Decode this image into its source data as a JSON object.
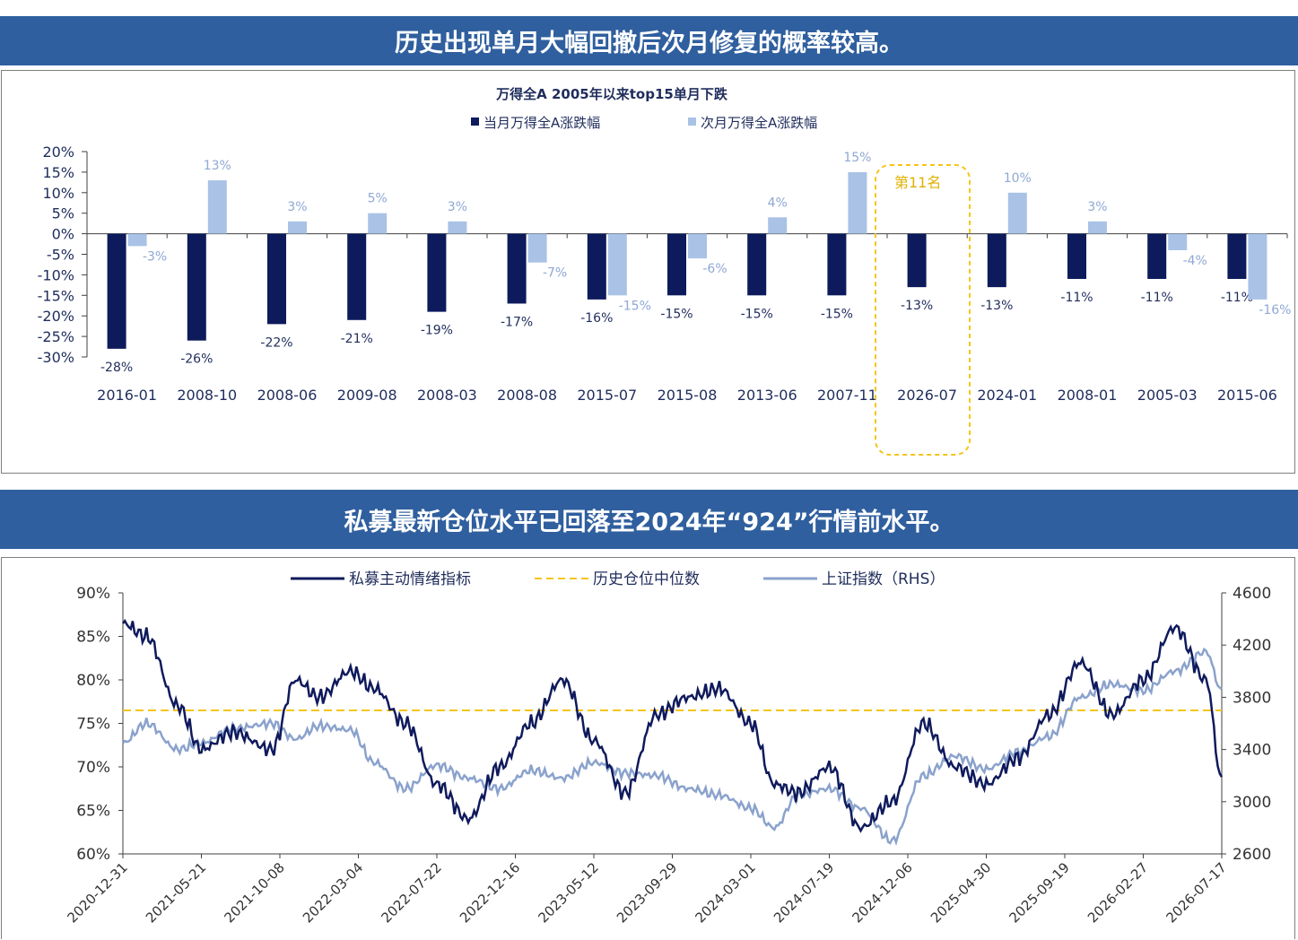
{
  "section1": {
    "banner": "历史出现单月大幅回撤后次月修复的概率较高。"
  },
  "section2": {
    "banner": "私募最新仓位水平已回落至2024年“924”行情前水平。"
  },
  "colors": {
    "banner_bg": "#2f5f9e",
    "bar_current": "#0d1a5c",
    "bar_next": "#a9c2e6",
    "highlight": "#f5c518",
    "line_sentiment": "#0f1a5c",
    "line_median": "#f5c518",
    "line_index": "#8aa2cc"
  },
  "chart_data": [
    {
      "type": "bar",
      "title": "万得全A 2005年以来top15单月下跌",
      "categories": [
        "2016-01",
        "2008-10",
        "2008-06",
        "2009-08",
        "2008-03",
        "2008-08",
        "2015-07",
        "2015-08",
        "2013-06",
        "2007-11",
        "2026-07",
        "2024-01",
        "2008-01",
        "2005-03",
        "2015-06"
      ],
      "series": [
        {
          "name": "当月万得全A涨跌幅",
          "values": [
            -28,
            -26,
            -22,
            -21,
            -19,
            -17,
            -16,
            -15,
            -15,
            -15,
            -13,
            -13,
            -11,
            -11,
            -11
          ]
        },
        {
          "name": "次月万得全A涨跌幅",
          "values": [
            -3,
            13,
            3,
            5,
            3,
            -7,
            -15,
            -6,
            4,
            15,
            null,
            10,
            3,
            -4,
            -16
          ]
        }
      ],
      "value_labels_current": [
        "-28%",
        "-26%",
        "-22%",
        "-21%",
        "-19%",
        "-17%",
        "-16%",
        "-15%",
        "-15%",
        "-15%",
        "-13%",
        "-13%",
        "-11%",
        "-11%",
        "-11%"
      ],
      "value_labels_next": [
        "-3%",
        "13%",
        "3%",
        "5%",
        "3%",
        "-7%",
        "-15%",
        "-6%",
        "4%",
        "15%",
        "",
        "10%",
        "3%",
        "-4%",
        "-16%"
      ],
      "ylim": [
        -30,
        20
      ],
      "yticks": [
        "20%",
        "15%",
        "10%",
        "5%",
        "0%",
        "-5%",
        "-10%",
        "-15%",
        "-20%",
        "-25%",
        "-30%"
      ],
      "annotation": {
        "category": "2026-07",
        "text": "第11名"
      },
      "legend_position": "top"
    },
    {
      "type": "line",
      "legend": [
        "私募主动情绪指标",
        "历史仓位中位数",
        "上证指数（RHS）"
      ],
      "x_ticks": [
        "2020-12-31",
        "2021-05-21",
        "2021-10-08",
        "2022-03-04",
        "2022-07-22",
        "2022-12-16",
        "2023-05-12",
        "2023-09-29",
        "2024-03-01",
        "2024-07-19",
        "2024-12-06",
        "2025-04-30",
        "2025-09-19",
        "2026-02-27",
        "2026-07-17"
      ],
      "yleft_ticks": [
        "90%",
        "85%",
        "80%",
        "75%",
        "70%",
        "65%",
        "60%"
      ],
      "yleft_lim": [
        60,
        90
      ],
      "yright_ticks": [
        "4600",
        "4200",
        "3800",
        "3400",
        "3000",
        "2600"
      ],
      "yright_lim": [
        2600,
        4600
      ],
      "median_value": 76.5,
      "series": [
        {
          "name": "私募主动情绪指标",
          "axis": "left",
          "x_index": [
            0,
            0.3,
            0.7,
            1,
            1.4,
            1.9,
            2.2,
            2.5,
            2.9,
            3.2,
            3.6,
            4,
            4.4,
            4.8,
            5.2,
            5.6,
            6,
            6.4,
            6.8,
            7.2,
            7.6,
            8,
            8.3,
            8.6,
            9,
            9.4,
            9.8,
            10.2,
            10.6,
            11,
            11.4,
            11.8,
            12.2,
            12.6,
            13,
            13.4,
            13.8,
            14
          ],
          "values": [
            86.5,
            85,
            77,
            72,
            74,
            72,
            80,
            78,
            81,
            79,
            75,
            68,
            64,
            70,
            75,
            80,
            73,
            67,
            76,
            78,
            79,
            75,
            68,
            67,
            70,
            63,
            66,
            75,
            70,
            68,
            71,
            76,
            82,
            76,
            80,
            86,
            80,
            68.5
          ]
        },
        {
          "name": "上证指数（RHS）",
          "axis": "right",
          "x_index": [
            0,
            0.3,
            0.7,
            1,
            1.4,
            1.9,
            2.2,
            2.5,
            2.9,
            3.2,
            3.6,
            4,
            4.4,
            4.8,
            5.2,
            5.6,
            6,
            6.4,
            6.8,
            7.2,
            7.6,
            8,
            8.3,
            8.6,
            9,
            9.4,
            9.8,
            10.2,
            10.6,
            11,
            11.4,
            11.8,
            12.2,
            12.6,
            13,
            13.4,
            13.8,
            14
          ],
          "values": [
            3450,
            3600,
            3400,
            3450,
            3560,
            3600,
            3480,
            3580,
            3550,
            3300,
            3100,
            3280,
            3180,
            3100,
            3240,
            3180,
            3300,
            3220,
            3200,
            3100,
            3050,
            2950,
            2800,
            3050,
            3100,
            2950,
            2700,
            3200,
            3350,
            3250,
            3380,
            3500,
            3800,
            3900,
            3850,
            4000,
            4150,
            3850
          ]
        }
      ]
    }
  ]
}
